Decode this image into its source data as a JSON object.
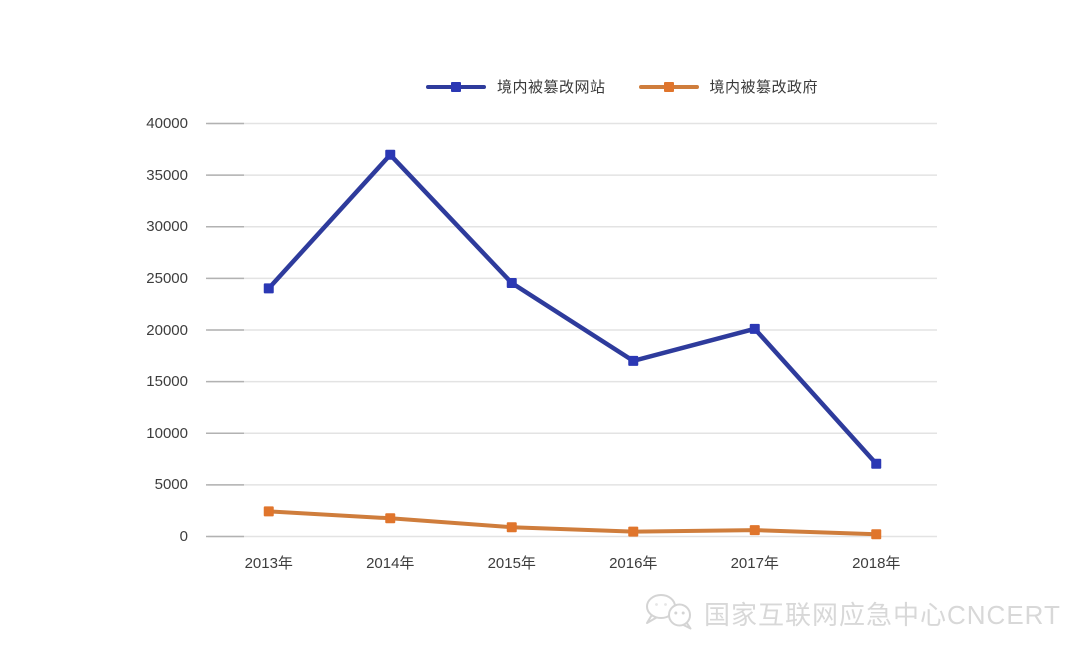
{
  "chart_data": {
    "type": "line",
    "categories": [
      "2013年",
      "2014年",
      "2015年",
      "2016年",
      "2017年",
      "2018年"
    ],
    "series": [
      {
        "name": "境内被篡改网站",
        "color": "#2e3b9c",
        "marker_color": "#2b38b4",
        "marker": "square",
        "values": [
          24034,
          36969,
          24550,
          17011,
          20111,
          7049
        ]
      },
      {
        "name": "境内被篡改政府",
        "color": "#cf7d3c",
        "marker_color": "#e0752c",
        "marker": "square",
        "values": [
          2430,
          1763,
          898,
          467,
          618,
          216
        ]
      }
    ],
    "title": "",
    "xlabel": "",
    "ylabel": "",
    "ylim": [
      0,
      40000
    ],
    "yticks": [
      0,
      5000,
      10000,
      15000,
      20000,
      25000,
      30000,
      35000,
      40000
    ],
    "grid": "horizontal",
    "legend_position": "top",
    "style": {
      "grid_color": "#e3e3e3",
      "tick_color": "#b2b2b2",
      "axis_text_color": "#3d3d3d",
      "background": "#ffffff"
    }
  },
  "watermark": {
    "icon": "wechat-icon",
    "text": "国家互联网应急中心CNCERT",
    "color": "#d8d8d8"
  }
}
